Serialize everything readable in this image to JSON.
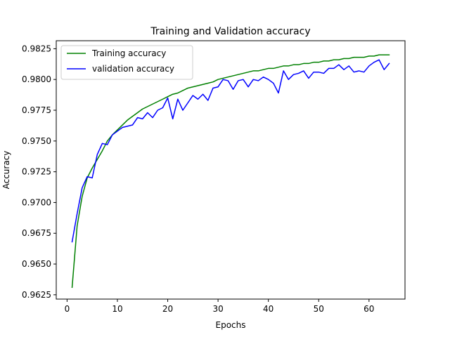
{
  "chart_data": {
    "type": "line",
    "title": "Training and Validation accuracy",
    "xlabel": "Epochs",
    "ylabel": "Accuracy",
    "xlim": [
      -2.15,
      67.15
    ],
    "ylim": [
      0.96215,
      0.98315
    ],
    "xticks": [
      0,
      10,
      20,
      30,
      40,
      50,
      60
    ],
    "xtick_labels": [
      "0",
      "10",
      "20",
      "30",
      "40",
      "50",
      "60"
    ],
    "yticks": [
      0.9625,
      0.965,
      0.9675,
      0.97,
      0.9725,
      0.975,
      0.9775,
      0.98,
      0.9825
    ],
    "ytick_labels": [
      "0.9625",
      "0.9650",
      "0.9675",
      "0.9700",
      "0.9725",
      "0.9750",
      "0.9775",
      "0.9800",
      "0.9825"
    ],
    "grid": false,
    "legend_position": "top-left",
    "x": [
      1,
      2,
      3,
      4,
      5,
      6,
      7,
      8,
      9,
      10,
      11,
      12,
      13,
      14,
      15,
      16,
      17,
      18,
      19,
      20,
      21,
      22,
      23,
      24,
      25,
      26,
      27,
      28,
      29,
      30,
      31,
      32,
      33,
      34,
      35,
      36,
      37,
      38,
      39,
      40,
      41,
      42,
      43,
      44,
      45,
      46,
      47,
      48,
      49,
      50,
      51,
      52,
      53,
      54,
      55,
      56,
      57,
      58,
      59,
      60,
      61,
      62,
      63,
      64
    ],
    "series": [
      {
        "name": "Training accuracy",
        "color": "#008000",
        "values": [
          0.9631,
          0.9681,
          0.9705,
          0.972,
          0.9728,
          0.9735,
          0.9742,
          0.975,
          0.9755,
          0.9759,
          0.9763,
          0.9767,
          0.977,
          0.9773,
          0.9776,
          0.9778,
          0.978,
          0.9782,
          0.9784,
          0.9786,
          0.9788,
          0.9789,
          0.9791,
          0.9793,
          0.9794,
          0.9795,
          0.9796,
          0.9797,
          0.9798,
          0.98,
          0.9801,
          0.9802,
          0.9803,
          0.9804,
          0.9805,
          0.9806,
          0.9807,
          0.9807,
          0.9808,
          0.9809,
          0.9809,
          0.981,
          0.9811,
          0.9811,
          0.9812,
          0.9812,
          0.9813,
          0.9813,
          0.9814,
          0.9814,
          0.9815,
          0.9815,
          0.9816,
          0.9816,
          0.9817,
          0.9817,
          0.9818,
          0.9818,
          0.9818,
          0.9819,
          0.9819,
          0.982,
          0.982,
          0.982
        ]
      },
      {
        "name": "validation accuracy",
        "color": "#0000ff",
        "values": [
          0.9668,
          0.9691,
          0.9712,
          0.9721,
          0.972,
          0.9739,
          0.9748,
          0.9747,
          0.9755,
          0.9758,
          0.9761,
          0.9762,
          0.9763,
          0.9769,
          0.9768,
          0.9773,
          0.9769,
          0.9775,
          0.9777,
          0.9785,
          0.9768,
          0.9784,
          0.9775,
          0.9781,
          0.9787,
          0.9784,
          0.9788,
          0.9783,
          0.9793,
          0.9794,
          0.98,
          0.9799,
          0.9792,
          0.9799,
          0.98,
          0.9794,
          0.98,
          0.9799,
          0.9802,
          0.98,
          0.9797,
          0.9789,
          0.9807,
          0.98,
          0.9804,
          0.9805,
          0.9807,
          0.9801,
          0.9806,
          0.9806,
          0.9805,
          0.9809,
          0.9809,
          0.9812,
          0.9808,
          0.9811,
          0.9806,
          0.9807,
          0.9806,
          0.9811,
          0.9814,
          0.9816,
          0.9808,
          0.9813
        ]
      }
    ]
  }
}
